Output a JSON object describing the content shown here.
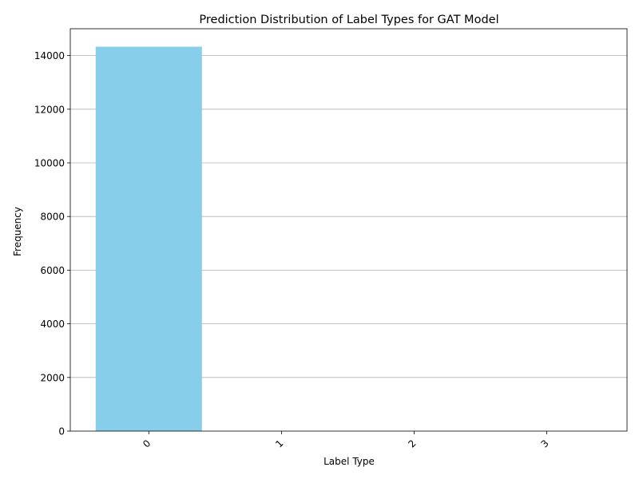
{
  "chart_data": {
    "type": "bar",
    "title": "Prediction Distribution of Label Types for GAT Model",
    "xlabel": "Label Type",
    "ylabel": "Frequency",
    "categories": [
      "0",
      "1",
      "2",
      "3"
    ],
    "values": [
      14330,
      0,
      0,
      0
    ],
    "ylim": [
      0,
      15000
    ],
    "yticks": [
      0,
      2000,
      4000,
      6000,
      8000,
      10000,
      12000,
      14000
    ],
    "xtick_rotation": 45,
    "grid": "y-axis only",
    "bar_color": "#87ceeb",
    "grid_color": "#b0b0b0",
    "axis_color": "#000000"
  }
}
